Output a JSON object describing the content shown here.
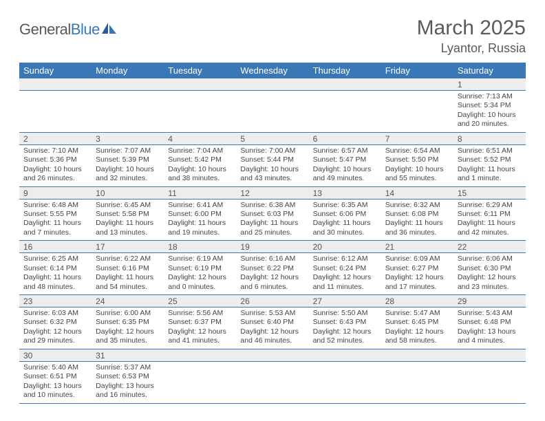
{
  "logo": {
    "word1": "General",
    "word2": "Blue"
  },
  "title": "March 2025",
  "location": "Lyantor, Russia",
  "colors": {
    "header_bg": "#3a77b7",
    "header_text": "#ffffff",
    "daynum_bg": "#ededed",
    "rule": "#3a77b7",
    "text": "#444444",
    "title": "#5a5a5a"
  },
  "day_headers": [
    "Sunday",
    "Monday",
    "Tuesday",
    "Wednesday",
    "Thursday",
    "Friday",
    "Saturday"
  ],
  "weeks": [
    [
      null,
      null,
      null,
      null,
      null,
      null,
      {
        "n": "1",
        "sunrise": "Sunrise: 7:13 AM",
        "sunset": "Sunset: 5:34 PM",
        "daylight": "Daylight: 10 hours and 20 minutes."
      }
    ],
    [
      {
        "n": "2",
        "sunrise": "Sunrise: 7:10 AM",
        "sunset": "Sunset: 5:36 PM",
        "daylight": "Daylight: 10 hours and 26 minutes."
      },
      {
        "n": "3",
        "sunrise": "Sunrise: 7:07 AM",
        "sunset": "Sunset: 5:39 PM",
        "daylight": "Daylight: 10 hours and 32 minutes."
      },
      {
        "n": "4",
        "sunrise": "Sunrise: 7:04 AM",
        "sunset": "Sunset: 5:42 PM",
        "daylight": "Daylight: 10 hours and 38 minutes."
      },
      {
        "n": "5",
        "sunrise": "Sunrise: 7:00 AM",
        "sunset": "Sunset: 5:44 PM",
        "daylight": "Daylight: 10 hours and 43 minutes."
      },
      {
        "n": "6",
        "sunrise": "Sunrise: 6:57 AM",
        "sunset": "Sunset: 5:47 PM",
        "daylight": "Daylight: 10 hours and 49 minutes."
      },
      {
        "n": "7",
        "sunrise": "Sunrise: 6:54 AM",
        "sunset": "Sunset: 5:50 PM",
        "daylight": "Daylight: 10 hours and 55 minutes."
      },
      {
        "n": "8",
        "sunrise": "Sunrise: 6:51 AM",
        "sunset": "Sunset: 5:52 PM",
        "daylight": "Daylight: 11 hours and 1 minute."
      }
    ],
    [
      {
        "n": "9",
        "sunrise": "Sunrise: 6:48 AM",
        "sunset": "Sunset: 5:55 PM",
        "daylight": "Daylight: 11 hours and 7 minutes."
      },
      {
        "n": "10",
        "sunrise": "Sunrise: 6:45 AM",
        "sunset": "Sunset: 5:58 PM",
        "daylight": "Daylight: 11 hours and 13 minutes."
      },
      {
        "n": "11",
        "sunrise": "Sunrise: 6:41 AM",
        "sunset": "Sunset: 6:00 PM",
        "daylight": "Daylight: 11 hours and 19 minutes."
      },
      {
        "n": "12",
        "sunrise": "Sunrise: 6:38 AM",
        "sunset": "Sunset: 6:03 PM",
        "daylight": "Daylight: 11 hours and 25 minutes."
      },
      {
        "n": "13",
        "sunrise": "Sunrise: 6:35 AM",
        "sunset": "Sunset: 6:06 PM",
        "daylight": "Daylight: 11 hours and 30 minutes."
      },
      {
        "n": "14",
        "sunrise": "Sunrise: 6:32 AM",
        "sunset": "Sunset: 6:08 PM",
        "daylight": "Daylight: 11 hours and 36 minutes."
      },
      {
        "n": "15",
        "sunrise": "Sunrise: 6:29 AM",
        "sunset": "Sunset: 6:11 PM",
        "daylight": "Daylight: 11 hours and 42 minutes."
      }
    ],
    [
      {
        "n": "16",
        "sunrise": "Sunrise: 6:25 AM",
        "sunset": "Sunset: 6:14 PM",
        "daylight": "Daylight: 11 hours and 48 minutes."
      },
      {
        "n": "17",
        "sunrise": "Sunrise: 6:22 AM",
        "sunset": "Sunset: 6:16 PM",
        "daylight": "Daylight: 11 hours and 54 minutes."
      },
      {
        "n": "18",
        "sunrise": "Sunrise: 6:19 AM",
        "sunset": "Sunset: 6:19 PM",
        "daylight": "Daylight: 12 hours and 0 minutes."
      },
      {
        "n": "19",
        "sunrise": "Sunrise: 6:16 AM",
        "sunset": "Sunset: 6:22 PM",
        "daylight": "Daylight: 12 hours and 6 minutes."
      },
      {
        "n": "20",
        "sunrise": "Sunrise: 6:12 AM",
        "sunset": "Sunset: 6:24 PM",
        "daylight": "Daylight: 12 hours and 11 minutes."
      },
      {
        "n": "21",
        "sunrise": "Sunrise: 6:09 AM",
        "sunset": "Sunset: 6:27 PM",
        "daylight": "Daylight: 12 hours and 17 minutes."
      },
      {
        "n": "22",
        "sunrise": "Sunrise: 6:06 AM",
        "sunset": "Sunset: 6:30 PM",
        "daylight": "Daylight: 12 hours and 23 minutes."
      }
    ],
    [
      {
        "n": "23",
        "sunrise": "Sunrise: 6:03 AM",
        "sunset": "Sunset: 6:32 PM",
        "daylight": "Daylight: 12 hours and 29 minutes."
      },
      {
        "n": "24",
        "sunrise": "Sunrise: 6:00 AM",
        "sunset": "Sunset: 6:35 PM",
        "daylight": "Daylight: 12 hours and 35 minutes."
      },
      {
        "n": "25",
        "sunrise": "Sunrise: 5:56 AM",
        "sunset": "Sunset: 6:37 PM",
        "daylight": "Daylight: 12 hours and 41 minutes."
      },
      {
        "n": "26",
        "sunrise": "Sunrise: 5:53 AM",
        "sunset": "Sunset: 6:40 PM",
        "daylight": "Daylight: 12 hours and 46 minutes."
      },
      {
        "n": "27",
        "sunrise": "Sunrise: 5:50 AM",
        "sunset": "Sunset: 6:43 PM",
        "daylight": "Daylight: 12 hours and 52 minutes."
      },
      {
        "n": "28",
        "sunrise": "Sunrise: 5:47 AM",
        "sunset": "Sunset: 6:45 PM",
        "daylight": "Daylight: 12 hours and 58 minutes."
      },
      {
        "n": "29",
        "sunrise": "Sunrise: 5:43 AM",
        "sunset": "Sunset: 6:48 PM",
        "daylight": "Daylight: 13 hours and 4 minutes."
      }
    ],
    [
      {
        "n": "30",
        "sunrise": "Sunrise: 5:40 AM",
        "sunset": "Sunset: 6:51 PM",
        "daylight": "Daylight: 13 hours and 10 minutes."
      },
      {
        "n": "31",
        "sunrise": "Sunrise: 5:37 AM",
        "sunset": "Sunset: 6:53 PM",
        "daylight": "Daylight: 13 hours and 16 minutes."
      },
      null,
      null,
      null,
      null,
      null
    ]
  ]
}
